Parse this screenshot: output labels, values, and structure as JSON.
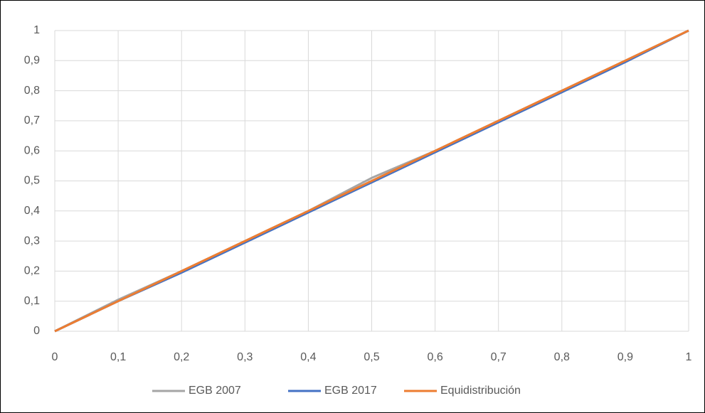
{
  "chart_data": {
    "type": "line",
    "x": [
      0,
      0.1,
      0.2,
      0.3,
      0.4,
      0.5,
      0.6,
      0.7,
      0.8,
      0.9,
      1
    ],
    "series": [
      {
        "name": "EGB 2007",
        "color": "#a5a5a5",
        "values": [
          0,
          0.105,
          0.2,
          0.3,
          0.4,
          0.51,
          0.6,
          0.7,
          0.8,
          0.9,
          1
        ]
      },
      {
        "name": "EGB 2017",
        "color": "#4472c4",
        "values": [
          0,
          0.1,
          0.195,
          0.295,
          0.395,
          0.495,
          0.595,
          0.695,
          0.795,
          0.895,
          1
        ]
      },
      {
        "name": "Equidistribución",
        "color": "#ed7d31",
        "values": [
          0,
          0.1,
          0.2,
          0.3,
          0.4,
          0.5,
          0.6,
          0.7,
          0.8,
          0.9,
          1
        ]
      }
    ],
    "xlim": [
      0,
      1
    ],
    "xticks": [
      0,
      {
        "value": 0.1,
        "label": "0,1"
      },
      {
        "value": 0.2,
        "label": "0,2"
      },
      {
        "value": 0.3,
        "label": "0,3"
      },
      {
        "value": 0.4,
        "label": "0,4"
      },
      {
        "value": 0.5,
        "label": "0,5"
      },
      {
        "value": 0.6,
        "label": "0,6"
      },
      {
        "value": 0.7,
        "label": "0,7"
      },
      {
        "value": 0.8,
        "label": "0,8"
      },
      {
        "value": 0.9,
        "label": "0,9"
      },
      1
    ],
    "ylim": [
      0,
      1
    ],
    "yticks": [
      0,
      {
        "value": 0.1,
        "label": "0,1"
      },
      {
        "value": 0.2,
        "label": "0,2"
      },
      {
        "value": 0.3,
        "label": "0,3"
      },
      {
        "value": 0.4,
        "label": "0,4"
      },
      {
        "value": 0.5,
        "label": "0,5"
      },
      {
        "value": 0.6,
        "label": "0,6"
      },
      {
        "value": 0.7,
        "label": "0,7"
      },
      {
        "value": 0.8,
        "label": "0,8"
      },
      {
        "value": 0.9,
        "label": "0,9"
      },
      1
    ],
    "grid": true,
    "legend": "bottom"
  }
}
